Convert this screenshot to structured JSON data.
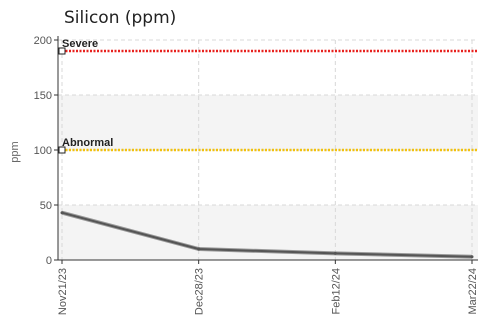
{
  "chart_data": {
    "type": "line",
    "title": "Silicon (ppm)",
    "ylabel": "ppm",
    "ylim": [
      0,
      200
    ],
    "yticks": [
      0,
      50,
      100,
      150,
      200
    ],
    "x": [
      "Nov21/23",
      "Dec28/23",
      "Feb12/24",
      "Mar22/24"
    ],
    "series": [
      {
        "values": [
          43,
          10,
          6,
          3
        ],
        "color": "#555555"
      }
    ],
    "thresholds": [
      {
        "label": "Severe",
        "value": 190,
        "color": "#e8211e"
      },
      {
        "label": "Abnormal",
        "value": 100,
        "color": "#f2c10c"
      }
    ],
    "grid": true,
    "bands": [
      "#f4f4f4",
      "#ffffff"
    ]
  }
}
